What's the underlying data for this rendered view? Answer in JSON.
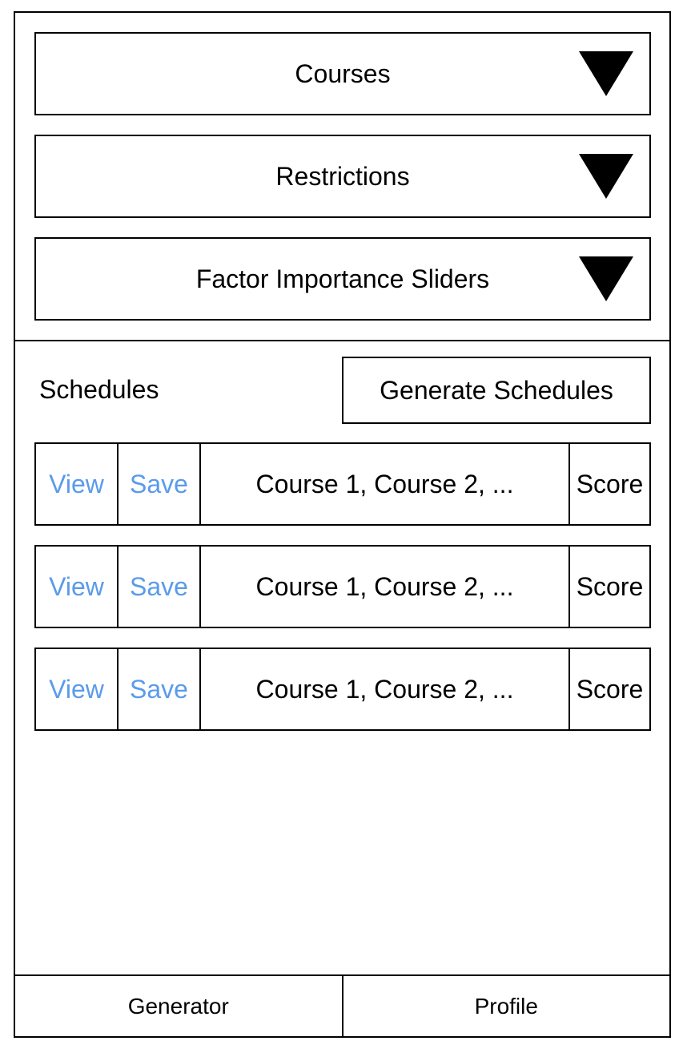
{
  "dropdowns": [
    {
      "label": "Courses",
      "icon": "caret-down-icon"
    },
    {
      "label": "Restrictions",
      "icon": "caret-down-icon"
    },
    {
      "label": "Factor Importance Sliders",
      "icon": "caret-down-icon"
    }
  ],
  "schedules": {
    "title": "Schedules",
    "generate_label": "Generate Schedules",
    "rows": [
      {
        "view": "View",
        "save": "Save",
        "courses": "Course 1, Course 2, ...",
        "score": "Score"
      },
      {
        "view": "View",
        "save": "Save",
        "courses": "Course 1, Course 2, ...",
        "score": "Score"
      },
      {
        "view": "View",
        "save": "Save",
        "courses": "Course 1, Course 2, ...",
        "score": "Score"
      }
    ]
  },
  "nav": {
    "items": [
      {
        "label": "Generator"
      },
      {
        "label": "Profile"
      }
    ]
  },
  "colors": {
    "link": "#5a9bea",
    "border": "#000000",
    "background": "#ffffff"
  }
}
